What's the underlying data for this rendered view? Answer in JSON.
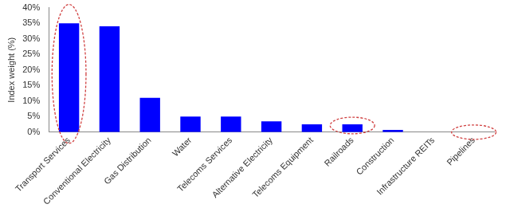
{
  "chart_data": {
    "type": "bar",
    "y_label": "Index weight (%)",
    "categories": [
      "Transport Services",
      "Conventional Electricity",
      "Gas Distribution",
      "Water",
      "Telecoms Services",
      "Alternative Electricity",
      "Telecoms Equipment",
      "Railroads",
      "Construction",
      "Infrastructure REITs",
      "Pipelines"
    ],
    "values": [
      35,
      34,
      11,
      5,
      5,
      3.5,
      2.5,
      2.5,
      0.7,
      0,
      0
    ],
    "color": "#0000ff",
    "ylim": [
      0,
      40
    ],
    "yticks": [
      {
        "value": 0,
        "label": "0%"
      },
      {
        "value": 5,
        "label": "5%"
      },
      {
        "value": 10,
        "label": "10%"
      },
      {
        "value": 15,
        "label": "15%"
      },
      {
        "value": 20,
        "label": "20%"
      },
      {
        "value": 25,
        "label": "25%"
      },
      {
        "value": 30,
        "label": "30%"
      },
      {
        "value": 35,
        "label": "35%"
      },
      {
        "value": 40,
        "label": "40%"
      }
    ],
    "grid": false
  }
}
